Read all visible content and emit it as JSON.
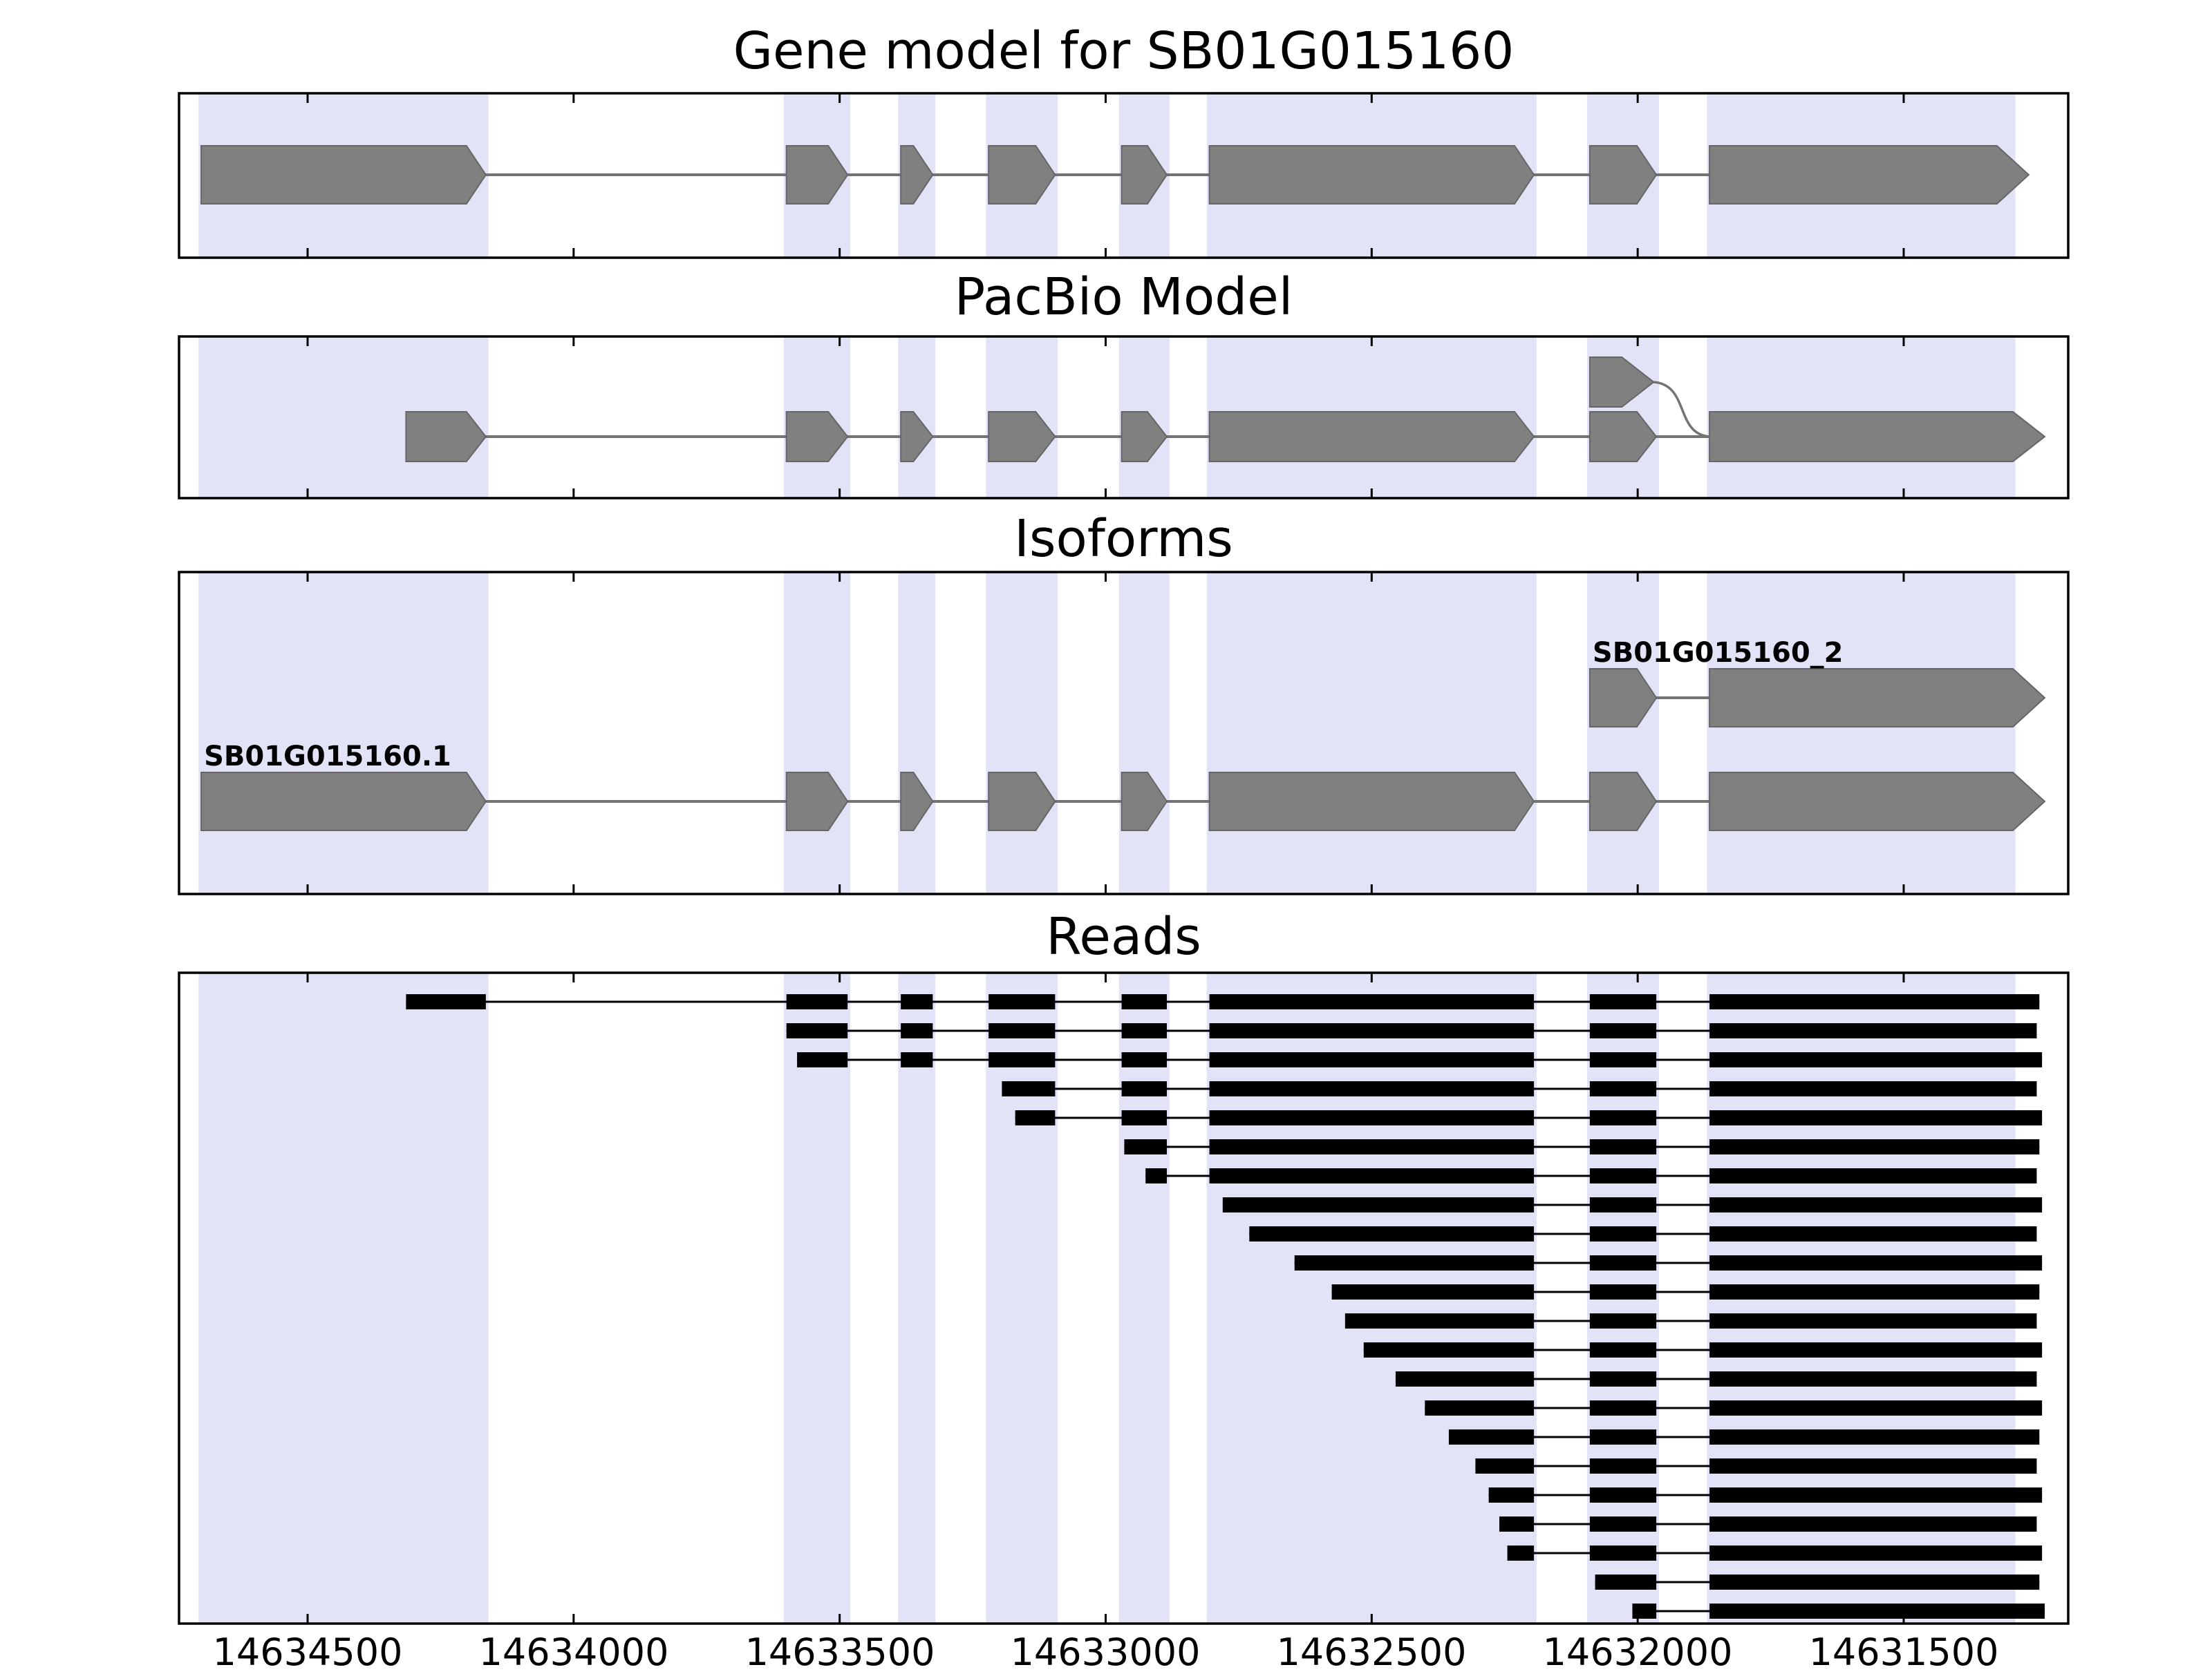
{
  "figure": {
    "gene_id": "SB01G015160"
  },
  "chart_data": {
    "type": "genome_browser_tracks",
    "title": "Gene model for SB01G015160",
    "x_axis": {
      "ticks": [
        14634500,
        14634000,
        14633500,
        14633000,
        14632500,
        14632000,
        14631500
      ],
      "tick_labels": [
        "14634500",
        "14634000",
        "14633500",
        "14633000",
        "14632500",
        "14632000",
        "14631500"
      ],
      "range_left": 14634742,
      "range_right": 14631191,
      "direction": "decreasing"
    },
    "highlight_bands": [
      [
        14634705,
        14634160
      ],
      [
        14633605,
        14633480
      ],
      [
        14633390,
        14633320
      ],
      [
        14633225,
        14633090
      ],
      [
        14632975,
        14632880
      ],
      [
        14632810,
        14632190
      ],
      [
        14632095,
        14631960
      ],
      [
        14631870,
        14631290
      ]
    ],
    "colors": {
      "highlight_band": "#e3e3f8",
      "feature": "#808080",
      "feature_edge": "#666666",
      "intron_line": "#737373",
      "read": "#000000",
      "panel_border": "#000000",
      "background": "#ffffff"
    },
    "panels": [
      {
        "id": "gene-model",
        "title": "Gene model for SB01G015160",
        "transcripts": [
          {
            "name": "SB01G015160-gene-model",
            "exons": [
              [
                14634700,
                14634165
              ],
              [
                14633600,
                14633485
              ],
              [
                14633385,
                14633325
              ],
              [
                14633220,
                14633095
              ],
              [
                14632970,
                14632885
              ],
              [
                14632805,
                14632195
              ],
              [
                14632090,
                14631965
              ],
              [
                14631865,
                14631265
              ]
            ]
          }
        ]
      },
      {
        "id": "pacbio-model",
        "title": "PacBio Model",
        "transcripts": [
          {
            "name": "pacbio-main",
            "exons": [
              [
                14634315,
                14634165
              ],
              [
                14633600,
                14633485
              ],
              [
                14633385,
                14633325
              ],
              [
                14633220,
                14633095
              ],
              [
                14632970,
                14632885
              ],
              [
                14632805,
                14632195
              ],
              [
                14632090,
                14631965
              ],
              [
                14631865,
                14631235
              ]
            ]
          },
          {
            "name": "pacbio-alt-exon",
            "row": "upper",
            "exons": [
              [
                14632090,
                14631970
              ]
            ],
            "splice_curve_to": 14631865
          }
        ]
      },
      {
        "id": "isoforms",
        "title": "Isoforms",
        "transcripts": [
          {
            "name": "SB01G015160_2",
            "label": "SB01G015160_2",
            "row": "upper",
            "exons": [
              [
                14632090,
                14631965
              ],
              [
                14631865,
                14631235
              ]
            ]
          },
          {
            "name": "SB01G015160.1",
            "label": "SB01G015160.1",
            "row": "lower",
            "exons": [
              [
                14634700,
                14634165
              ],
              [
                14633600,
                14633485
              ],
              [
                14633385,
                14633325
              ],
              [
                14633220,
                14633095
              ],
              [
                14632970,
                14632885
              ],
              [
                14632805,
                14632195
              ],
              [
                14632090,
                14631965
              ],
              [
                14631865,
                14631235
              ]
            ]
          }
        ]
      },
      {
        "id": "reads",
        "title": "Reads",
        "reads": [
          {
            "blocks": [
              [
                14634315,
                14634165
              ],
              [
                14633600,
                14633485
              ],
              [
                14633385,
                14633325
              ],
              [
                14633220,
                14633095
              ],
              [
                14632970,
                14632885
              ],
              [
                14632805,
                14632195
              ],
              [
                14632090,
                14631965
              ],
              [
                14631865,
                14631245
              ]
            ]
          },
          {
            "blocks": [
              [
                14633600,
                14633485
              ],
              [
                14633385,
                14633325
              ],
              [
                14633220,
                14633095
              ],
              [
                14632970,
                14632885
              ],
              [
                14632805,
                14632195
              ],
              [
                14632090,
                14631965
              ],
              [
                14631865,
                14631250
              ]
            ]
          },
          {
            "blocks": [
              [
                14633580,
                14633485
              ],
              [
                14633385,
                14633325
              ],
              [
                14633220,
                14633095
              ],
              [
                14632970,
                14632885
              ],
              [
                14632805,
                14632195
              ],
              [
                14632090,
                14631965
              ],
              [
                14631865,
                14631240
              ]
            ]
          },
          {
            "blocks": [
              [
                14633195,
                14633095
              ],
              [
                14632970,
                14632885
              ],
              [
                14632805,
                14632195
              ],
              [
                14632090,
                14631965
              ],
              [
                14631865,
                14631250
              ]
            ]
          },
          {
            "blocks": [
              [
                14633170,
                14633095
              ],
              [
                14632970,
                14632885
              ],
              [
                14632805,
                14632195
              ],
              [
                14632090,
                14631965
              ],
              [
                14631865,
                14631240
              ]
            ]
          },
          {
            "blocks": [
              [
                14632965,
                14632885
              ],
              [
                14632805,
                14632195
              ],
              [
                14632090,
                14631965
              ],
              [
                14631865,
                14631245
              ]
            ]
          },
          {
            "blocks": [
              [
                14632925,
                14632885
              ],
              [
                14632805,
                14632195
              ],
              [
                14632090,
                14631965
              ],
              [
                14631865,
                14631250
              ]
            ]
          },
          {
            "blocks": [
              [
                14632780,
                14632195
              ],
              [
                14632090,
                14631965
              ],
              [
                14631865,
                14631240
              ]
            ]
          },
          {
            "blocks": [
              [
                14632730,
                14632195
              ],
              [
                14632090,
                14631965
              ],
              [
                14631865,
                14631250
              ]
            ]
          },
          {
            "blocks": [
              [
                14632645,
                14632195
              ],
              [
                14632090,
                14631965
              ],
              [
                14631865,
                14631240
              ]
            ]
          },
          {
            "blocks": [
              [
                14632575,
                14632195
              ],
              [
                14632090,
                14631965
              ],
              [
                14631865,
                14631245
              ]
            ]
          },
          {
            "blocks": [
              [
                14632550,
                14632195
              ],
              [
                14632090,
                14631965
              ],
              [
                14631865,
                14631250
              ]
            ]
          },
          {
            "blocks": [
              [
                14632515,
                14632195
              ],
              [
                14632090,
                14631965
              ],
              [
                14631865,
                14631240
              ]
            ]
          },
          {
            "blocks": [
              [
                14632455,
                14632195
              ],
              [
                14632090,
                14631965
              ],
              [
                14631865,
                14631250
              ]
            ]
          },
          {
            "blocks": [
              [
                14632400,
                14632195
              ],
              [
                14632090,
                14631965
              ],
              [
                14631865,
                14631240
              ]
            ]
          },
          {
            "blocks": [
              [
                14632355,
                14632195
              ],
              [
                14632090,
                14631965
              ],
              [
                14631865,
                14631245
              ]
            ]
          },
          {
            "blocks": [
              [
                14632305,
                14632195
              ],
              [
                14632090,
                14631965
              ],
              [
                14631865,
                14631250
              ]
            ]
          },
          {
            "blocks": [
              [
                14632280,
                14632195
              ],
              [
                14632090,
                14631965
              ],
              [
                14631865,
                14631240
              ]
            ]
          },
          {
            "blocks": [
              [
                14632260,
                14632195
              ],
              [
                14632090,
                14631965
              ],
              [
                14631865,
                14631250
              ]
            ]
          },
          {
            "blocks": [
              [
                14632245,
                14632195
              ],
              [
                14632090,
                14631965
              ],
              [
                14631865,
                14631240
              ]
            ]
          },
          {
            "blocks": [
              [
                14632080,
                14631965
              ],
              [
                14631865,
                14631245
              ]
            ]
          },
          {
            "blocks": [
              [
                14632010,
                14631965
              ],
              [
                14631865,
                14631235
              ]
            ]
          }
        ]
      }
    ]
  }
}
